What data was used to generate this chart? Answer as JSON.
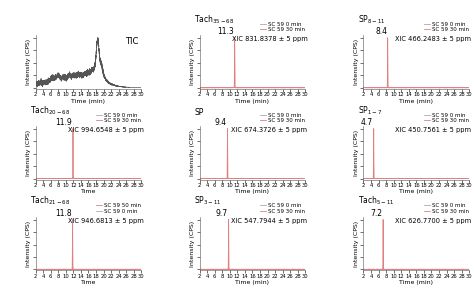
{
  "layout": {
    "rows": 3,
    "cols": 3
  },
  "plots": [
    {
      "row": 0,
      "col": 0,
      "type": "TIC",
      "title": "TIC",
      "xlabel": "Time (min)",
      "ylabel": "Intensity (CPS)",
      "xlim": [
        2,
        30
      ],
      "peak_time": 18.5,
      "has_legend": false,
      "legend_lines": [],
      "peak_annotation": "",
      "xic_label": "",
      "compound": "",
      "subscript": ""
    },
    {
      "row": 0,
      "col": 1,
      "type": "XIC",
      "compound": "Tach",
      "subscript": "35-68",
      "xlabel": "Time (min)",
      "ylabel": "Intensity (CPS)",
      "xlim": [
        2,
        30
      ],
      "peak_time": 11.3,
      "peak_annotation": "11.3",
      "has_legend": true,
      "legend_lines": [
        "SC 59 0 min",
        "SC 59 30 min"
      ],
      "xic_label": "XIC 831.8378 ± 5 ppm"
    },
    {
      "row": 0,
      "col": 2,
      "type": "XIC",
      "compound": "SP",
      "subscript": "8-11",
      "xlabel": "Time (min)",
      "ylabel": "Intensity (CPS)",
      "xlim": [
        2,
        30
      ],
      "peak_time": 8.4,
      "peak_annotation": "8.4",
      "has_legend": true,
      "legend_lines": [
        "SC 59 0 min",
        "SC 59 30 min"
      ],
      "xic_label": "XIC 466.2483 ± 5 ppm"
    },
    {
      "row": 1,
      "col": 0,
      "type": "XIC",
      "compound": "Tach",
      "subscript": "20-68",
      "xlabel": "Time",
      "ylabel": "Intensity (CPS)",
      "xlim": [
        2,
        30
      ],
      "peak_time": 11.9,
      "peak_annotation": "11.9",
      "has_legend": true,
      "legend_lines": [
        "SC 59 0 min",
        "SC 59 30 min"
      ],
      "xic_label": "XIC 994.6548 ± 5 ppm"
    },
    {
      "row": 1,
      "col": 1,
      "type": "XIC",
      "compound": "SP",
      "subscript": "",
      "xlabel": "Time (min)",
      "ylabel": "Intensity (CPS)",
      "xlim": [
        2,
        30
      ],
      "peak_time": 9.4,
      "peak_annotation": "9.4",
      "has_legend": true,
      "legend_lines": [
        "SC 59 0 min",
        "SC 59 30 min"
      ],
      "xic_label": "XIC 674.3726 ± 5 ppm"
    },
    {
      "row": 1,
      "col": 2,
      "type": "XIC",
      "compound": "SP",
      "subscript": "1-7",
      "xlabel": "Time (min)",
      "ylabel": "Intensity (CPS)",
      "xlim": [
        2,
        30
      ],
      "peak_time": 4.7,
      "peak_annotation": "4.7",
      "has_legend": true,
      "legend_lines": [
        "SC 59 0 min",
        "SC 59 30 min"
      ],
      "xic_label": "XIC 450.7561 ± 5 ppm"
    },
    {
      "row": 2,
      "col": 0,
      "type": "XIC",
      "compound": "Tach",
      "subscript": "21-68",
      "xlabel": "Time",
      "ylabel": "Intensity (CPS)",
      "xlim": [
        2,
        30
      ],
      "peak_time": 11.8,
      "peak_annotation": "11.8",
      "has_legend": true,
      "legend_lines": [
        "SC 59 50 min",
        "SC 59 0 min"
      ],
      "xic_label": "XIC 946.6813 ± 5 ppm",
      "legend_gray_first": false
    },
    {
      "row": 2,
      "col": 1,
      "type": "XIC",
      "compound": "SP",
      "subscript": "3-11",
      "xlabel": "Time (min)",
      "ylabel": "Intensity (CPS)",
      "xlim": [
        2,
        30
      ],
      "peak_time": 9.7,
      "peak_annotation": "9.7",
      "has_legend": true,
      "legend_lines": [
        "SC 59 0 min",
        "SC 59 30 min"
      ],
      "xic_label": "XIC 547.7944 ± 5 ppm"
    },
    {
      "row": 2,
      "col": 2,
      "type": "XIC",
      "compound": "Tach",
      "subscript": "5-11",
      "xlabel": "Time (min)",
      "ylabel": "Intensity (CPS)",
      "xlim": [
        2,
        30
      ],
      "peak_time": 7.2,
      "peak_annotation": "7.2",
      "has_legend": true,
      "legend_lines": [
        "SC 59 0 min",
        "SC 59 30 min"
      ],
      "xic_label": "XIC 626.7700 ± 5 ppm"
    }
  ],
  "colors": {
    "gray_line": "#aaaaaa",
    "pink_line": "#e08080",
    "TIC_line": "#555555",
    "axis_color": "#555555",
    "bg": "#ffffff"
  },
  "font_sizes": {
    "compound_title": 5.5,
    "xic_label": 4.8,
    "peak_annotation": 5.5,
    "axis_label": 4.5,
    "tick": 3.8,
    "legend": 4.0,
    "tic_title": 6.0
  }
}
